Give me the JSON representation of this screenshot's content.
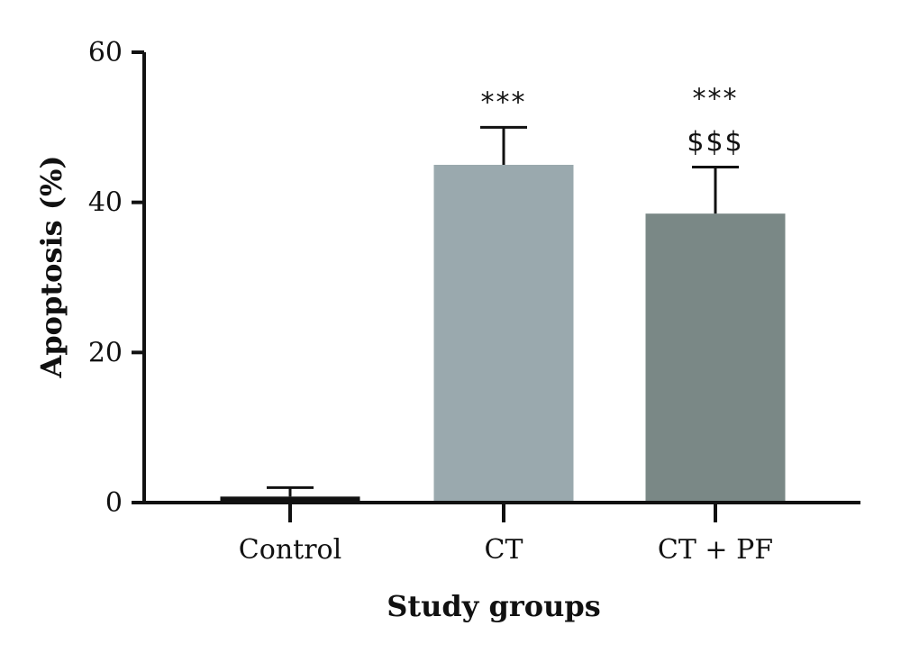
{
  "chart_data": {
    "type": "bar",
    "title": "",
    "xlabel": "Study groups",
    "ylabel": "Apoptosis (%)",
    "ylim": [
      0,
      60
    ],
    "yticks": [
      0,
      20,
      40,
      60
    ],
    "categories": [
      "Control",
      "CT",
      "CT + PF"
    ],
    "values": [
      0.8,
      45,
      38.5
    ],
    "errors": [
      1.2,
      5,
      6.2
    ],
    "colors": [
      "#111111",
      "#9aa9ae",
      "#7a8886"
    ],
    "annotations": [
      [
        "***"
      ],
      [
        "***",
        "$$$"
      ]
    ],
    "annotation_categories": [
      1,
      2
    ],
    "grid": false,
    "legend": "none"
  }
}
